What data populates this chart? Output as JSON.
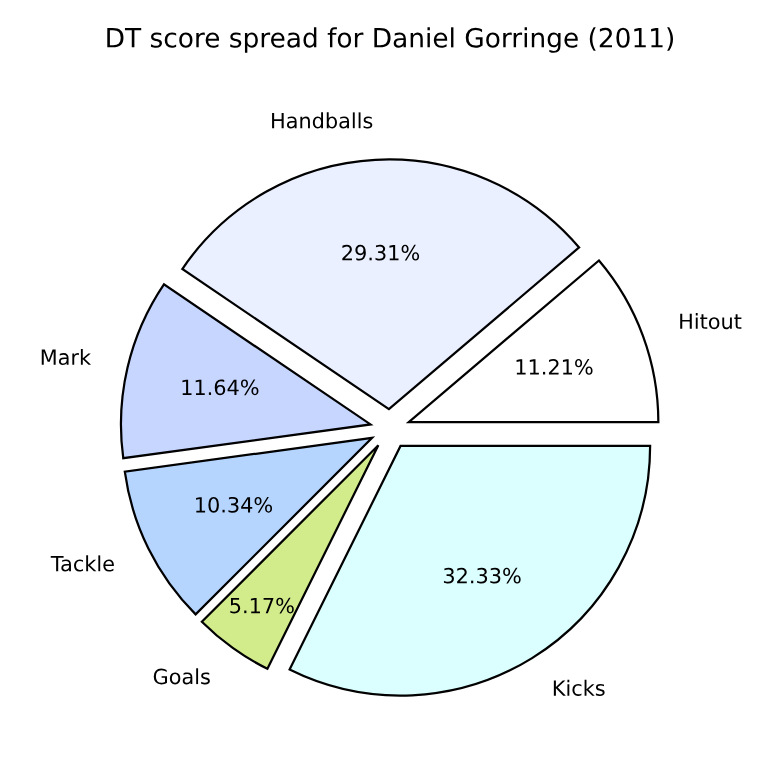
{
  "chart_data": {
    "type": "pie",
    "title": "DT score spread for Daniel Gorringe (2011)",
    "categories": [
      "Hitout",
      "Handballs",
      "Mark",
      "Tackle",
      "Goals",
      "Kicks"
    ],
    "values": [
      11.21,
      29.31,
      11.64,
      10.34,
      5.17,
      32.33
    ],
    "value_labels": [
      "11.21%",
      "29.31%",
      "11.64%",
      "10.34%",
      "5.17%",
      "32.33%"
    ],
    "colors": [
      "#ffffff",
      "#eaf0ff",
      "#c6d6ff",
      "#b5d5ff",
      "#d2ec8c",
      "#dbffff"
    ]
  }
}
